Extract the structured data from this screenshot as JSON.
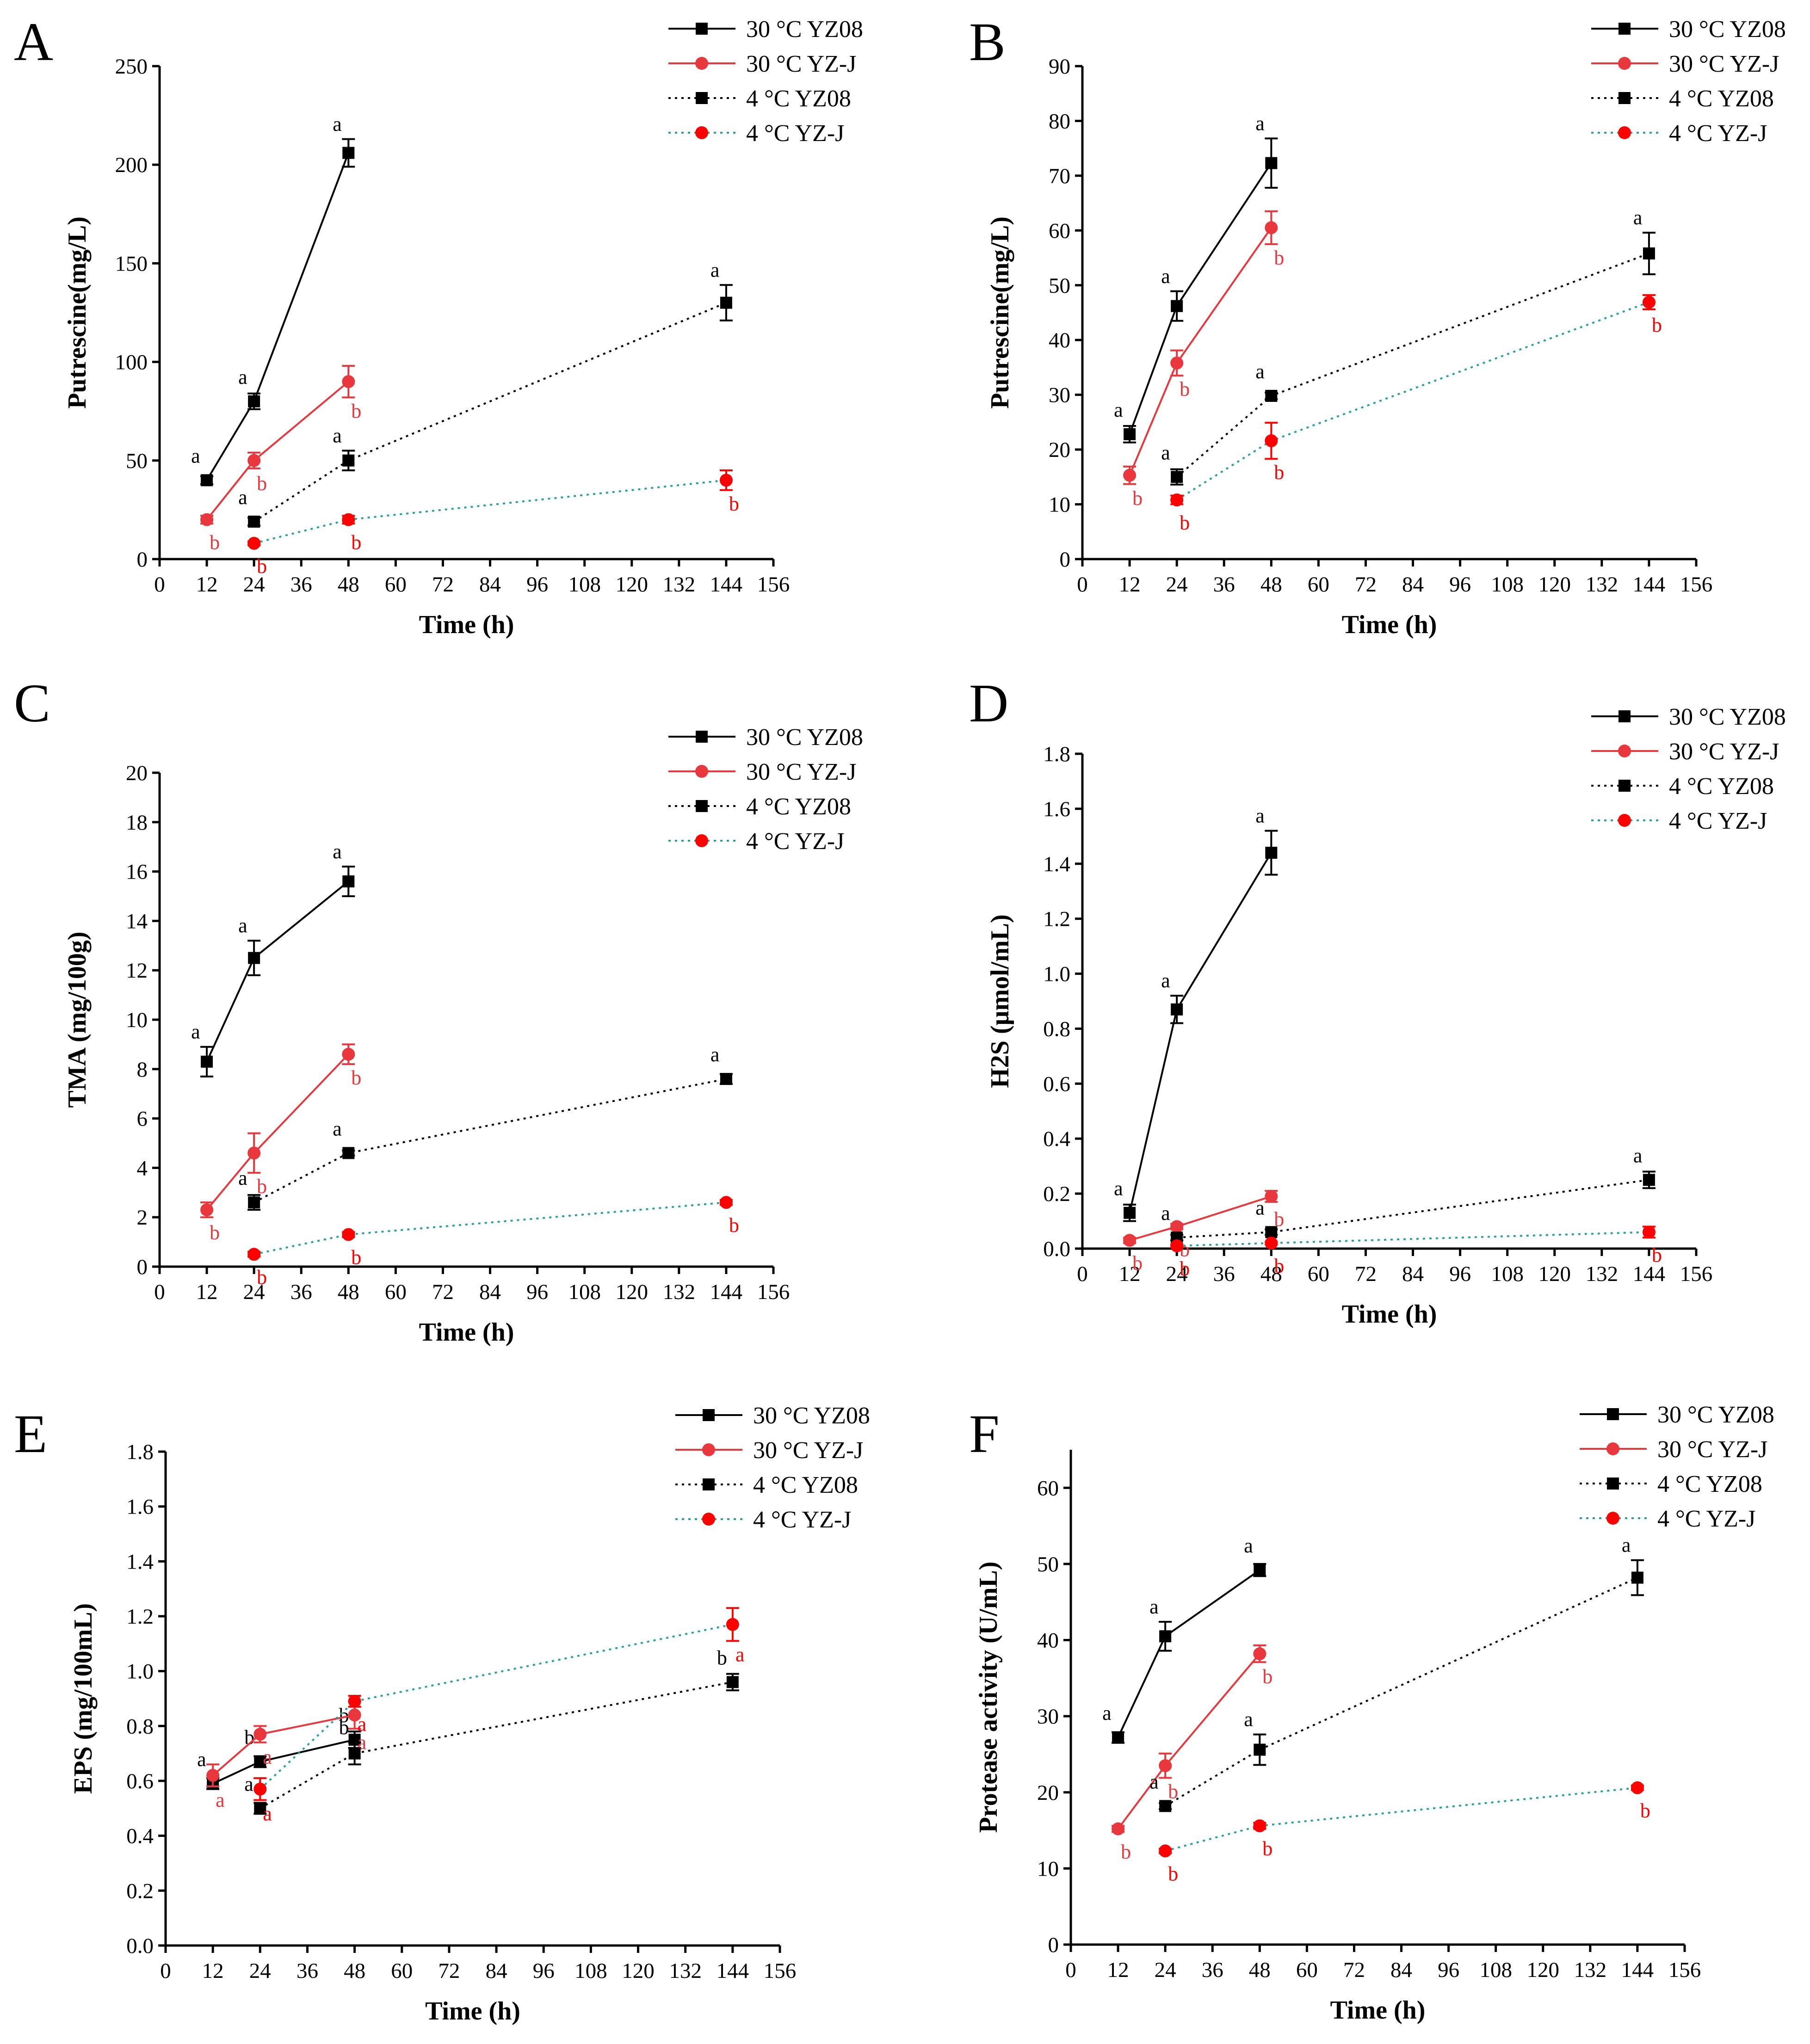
{
  "colors": {
    "yz08": "#000000",
    "yzj_30": "#e8383d",
    "yzj_4_marker": "#ff0000",
    "yzj_4_line": "#2aa198"
  },
  "chart_data": [
    {
      "panel": "A",
      "type": "line",
      "xlabel": "Time (h)",
      "ylabel": "Putrescine(mg/L)",
      "xlim": [
        0,
        156
      ],
      "ylim": [
        0,
        250
      ],
      "xticks": [
        0,
        12,
        24,
        36,
        48,
        60,
        72,
        84,
        96,
        108,
        120,
        132,
        144,
        156
      ],
      "yticks": [
        0,
        50,
        100,
        150,
        200,
        250
      ],
      "legend": [
        "30 °C YZ08",
        "30 °C YZ-J",
        "4 °C YZ08",
        "4 °C YZ-J"
      ],
      "series": [
        {
          "name": "30 °C YZ08",
          "x": [
            12,
            24,
            48
          ],
          "y": [
            40,
            80,
            206
          ],
          "err": [
            2,
            4,
            7
          ],
          "labels": [
            "a",
            "a",
            "a"
          ]
        },
        {
          "name": "30 °C YZ-J",
          "x": [
            12,
            24,
            48
          ],
          "y": [
            20,
            50,
            90
          ],
          "err": [
            2,
            4,
            8
          ],
          "labels": [
            "b",
            "b",
            "b"
          ]
        },
        {
          "name": "4 °C YZ08",
          "x": [
            24,
            48,
            144
          ],
          "y": [
            19,
            50,
            130
          ],
          "err": [
            2,
            5,
            9
          ],
          "labels": [
            "a",
            "a",
            "a"
          ]
        },
        {
          "name": "4 °C YZ-J",
          "x": [
            24,
            48,
            144
          ],
          "y": [
            8,
            20,
            40
          ],
          "err": [
            1,
            2,
            5
          ],
          "labels": [
            "b",
            "b",
            "b"
          ]
        }
      ]
    },
    {
      "panel": "B",
      "type": "line",
      "xlabel": "Time (h)",
      "ylabel": "Putrescine(mg/L)",
      "xlim": [
        0,
        156
      ],
      "ylim": [
        0,
        90
      ],
      "xticks": [
        0,
        12,
        24,
        36,
        48,
        60,
        72,
        84,
        96,
        108,
        120,
        132,
        144,
        156
      ],
      "yticks": [
        0,
        10,
        20,
        30,
        40,
        50,
        60,
        70,
        80,
        90
      ],
      "legend": [
        "30 °C YZ08",
        "30 °C YZ-J",
        "4 °C YZ08",
        "4 °C YZ-J"
      ],
      "series": [
        {
          "name": "30 °C YZ08",
          "x": [
            12,
            24,
            48
          ],
          "y": [
            22.8,
            46.2,
            72.3
          ],
          "err": [
            1.5,
            2.7,
            4.5
          ],
          "labels": [
            "a",
            "a",
            "a"
          ]
        },
        {
          "name": "30 °C YZ-J",
          "x": [
            12,
            24,
            48
          ],
          "y": [
            15.3,
            35.8,
            60.5
          ],
          "err": [
            1.6,
            2.3,
            3
          ],
          "labels": [
            "b",
            "b",
            "b"
          ]
        },
        {
          "name": "4 °C YZ08",
          "x": [
            24,
            48,
            144
          ],
          "y": [
            15,
            29.8,
            55.8
          ],
          "err": [
            1.4,
            0.6,
            3.8
          ],
          "labels": [
            "a",
            "a",
            "a"
          ]
        },
        {
          "name": "4 °C YZ-J",
          "x": [
            24,
            48,
            144
          ],
          "y": [
            10.8,
            21.6,
            46.9
          ],
          "err": [
            0.8,
            3.3,
            1.3
          ],
          "labels": [
            "b",
            "b",
            "b"
          ]
        }
      ]
    },
    {
      "panel": "C",
      "type": "line",
      "xlabel": "Time (h)",
      "ylabel": "TMA (mg/100g)",
      "xlim": [
        0,
        156
      ],
      "ylim": [
        0,
        20
      ],
      "xticks": [
        0,
        12,
        24,
        36,
        48,
        60,
        72,
        84,
        96,
        108,
        120,
        132,
        144,
        156
      ],
      "yticks": [
        0,
        2,
        4,
        6,
        8,
        10,
        12,
        14,
        16,
        18,
        20
      ],
      "legend": [
        "30 °C YZ08",
        "30 °C YZ-J",
        "4 °C YZ08",
        "4 °C YZ-J"
      ],
      "series": [
        {
          "name": "30 °C YZ08",
          "x": [
            12,
            24,
            48
          ],
          "y": [
            8.3,
            12.5,
            15.6
          ],
          "err": [
            0.6,
            0.7,
            0.6
          ],
          "labels": [
            "a",
            "a",
            "a"
          ]
        },
        {
          "name": "30 °C YZ-J",
          "x": [
            12,
            24,
            48
          ],
          "y": [
            2.3,
            4.6,
            8.6
          ],
          "err": [
            0.3,
            0.8,
            0.4
          ],
          "labels": [
            "b",
            "b",
            "b"
          ]
        },
        {
          "name": "4 °C YZ08",
          "x": [
            24,
            48,
            144
          ],
          "y": [
            2.6,
            4.6,
            7.6
          ],
          "err": [
            0.3,
            0.1,
            0.2
          ],
          "labels": [
            "a",
            "a",
            "a"
          ]
        },
        {
          "name": "4 °C YZ-J",
          "x": [
            24,
            48,
            144
          ],
          "y": [
            0.5,
            1.3,
            2.6
          ],
          "err": [
            0.1,
            0.1,
            0.1
          ],
          "labels": [
            "b",
            "b",
            "b"
          ]
        }
      ]
    },
    {
      "panel": "D",
      "type": "line",
      "xlabel": "Time (h)",
      "ylabel": "H2S (μmol/mL)",
      "xlim": [
        0,
        156
      ],
      "ylim": [
        0,
        1.8
      ],
      "xticks": [
        0,
        12,
        24,
        36,
        48,
        60,
        72,
        84,
        96,
        108,
        120,
        132,
        144,
        156
      ],
      "yticks": [
        "0.0",
        "0.2",
        "0.4",
        "0.6",
        "0.8",
        "1.0",
        "1.2",
        "1.4",
        "1.6",
        "1.8"
      ],
      "legend": [
        "30 °C YZ08",
        "30 °C YZ-J",
        "4 °C YZ08",
        "4 °C YZ-J"
      ],
      "series": [
        {
          "name": "30 °C YZ08",
          "x": [
            12,
            24,
            48
          ],
          "y": [
            0.13,
            0.87,
            1.44
          ],
          "err": [
            0.03,
            0.05,
            0.08
          ],
          "labels": [
            "a",
            "a",
            "a"
          ]
        },
        {
          "name": "30 °C YZ-J",
          "x": [
            12,
            24,
            48
          ],
          "y": [
            0.03,
            0.08,
            0.19
          ],
          "err": [
            0.01,
            0.01,
            0.02
          ],
          "labels": [
            "b",
            "b",
            "b"
          ]
        },
        {
          "name": "4 °C YZ08",
          "x": [
            24,
            48,
            144
          ],
          "y": [
            0.04,
            0.06,
            0.25
          ],
          "err": [
            0.01,
            0.01,
            0.03
          ],
          "labels": [
            "a",
            "a",
            "a"
          ]
        },
        {
          "name": "4 °C YZ-J",
          "x": [
            24,
            48,
            144
          ],
          "y": [
            0.01,
            0.02,
            0.06
          ],
          "err": [
            0.005,
            0.005,
            0.02
          ],
          "labels": [
            "b",
            "b",
            "b"
          ]
        }
      ]
    },
    {
      "panel": "E",
      "type": "line",
      "xlabel": "Time (h)",
      "ylabel": "EPS (mg/100mL)",
      "xlim": [
        0,
        156
      ],
      "ylim": [
        0,
        1.8
      ],
      "xticks": [
        0,
        12,
        24,
        36,
        48,
        60,
        72,
        84,
        96,
        108,
        120,
        132,
        144,
        156
      ],
      "yticks": [
        "0.0",
        "0.2",
        "0.4",
        "0.6",
        "0.8",
        "1.0",
        "1.2",
        "1.4",
        "1.6",
        "1.8"
      ],
      "legend": [
        "30 °C YZ08",
        "30 °C YZ-J",
        "4 °C YZ08",
        "4 °C YZ-J"
      ],
      "series": [
        {
          "name": "30 °C YZ08",
          "x": [
            12,
            24,
            48
          ],
          "y": [
            0.59,
            0.67,
            0.75
          ],
          "err": [
            0.02,
            0.02,
            0.03
          ],
          "labels": [
            "a",
            "b",
            "b"
          ]
        },
        {
          "name": "30 °C YZ-J",
          "x": [
            12,
            24,
            48
          ],
          "y": [
            0.62,
            0.77,
            0.84
          ],
          "err": [
            0.04,
            0.03,
            0.05
          ],
          "labels": [
            "a",
            "a",
            "a"
          ]
        },
        {
          "name": "4 °C YZ08",
          "x": [
            24,
            48,
            144
          ],
          "y": [
            0.5,
            0.7,
            0.96
          ],
          "err": [
            0.02,
            0.04,
            0.03
          ],
          "labels": [
            "a",
            "b",
            "b"
          ]
        },
        {
          "name": "4 °C YZ-J",
          "x": [
            24,
            48,
            144
          ],
          "y": [
            0.57,
            0.89,
            1.17
          ],
          "err": [
            0.04,
            0.02,
            0.06
          ],
          "labels": [
            "a",
            "a",
            "a"
          ]
        }
      ]
    },
    {
      "panel": "F",
      "type": "line",
      "xlabel": "Time (h)",
      "ylabel": "Protease activity (U/mL)",
      "xlim": [
        0,
        156
      ],
      "ylim": [
        0,
        65
      ],
      "xticks": [
        0,
        12,
        24,
        36,
        48,
        60,
        72,
        84,
        96,
        108,
        120,
        132,
        144,
        156
      ],
      "yticks": [
        0,
        10,
        20,
        30,
        40,
        50,
        60
      ],
      "legend": [
        "30 °C YZ08",
        "30 °C YZ-J",
        "4 °C YZ08",
        "4 °C YZ-J"
      ],
      "series": [
        {
          "name": "30 °C YZ08",
          "x": [
            12,
            24,
            48
          ],
          "y": [
            27.2,
            40.5,
            49.2
          ],
          "err": [
            0.7,
            1.9,
            0.8
          ],
          "labels": [
            "a",
            "a",
            "a"
          ]
        },
        {
          "name": "30 °C YZ-J",
          "x": [
            12,
            24,
            48
          ],
          "y": [
            15.2,
            23.5,
            38.2
          ],
          "err": [
            0.4,
            1.6,
            1.1
          ],
          "labels": [
            "b",
            "b",
            "b"
          ]
        },
        {
          "name": "4 °C YZ08",
          "x": [
            24,
            48,
            144
          ],
          "y": [
            18.2,
            25.6,
            48.2
          ],
          "err": [
            0.4,
            2,
            2.3
          ],
          "labels": [
            "a",
            "a",
            "a"
          ]
        },
        {
          "name": "4 °C YZ-J",
          "x": [
            24,
            48,
            144
          ],
          "y": [
            12.3,
            15.6,
            20.6
          ],
          "err": [
            0.3,
            0.4,
            0.3
          ],
          "labels": [
            "b",
            "b",
            "b"
          ]
        }
      ]
    }
  ]
}
